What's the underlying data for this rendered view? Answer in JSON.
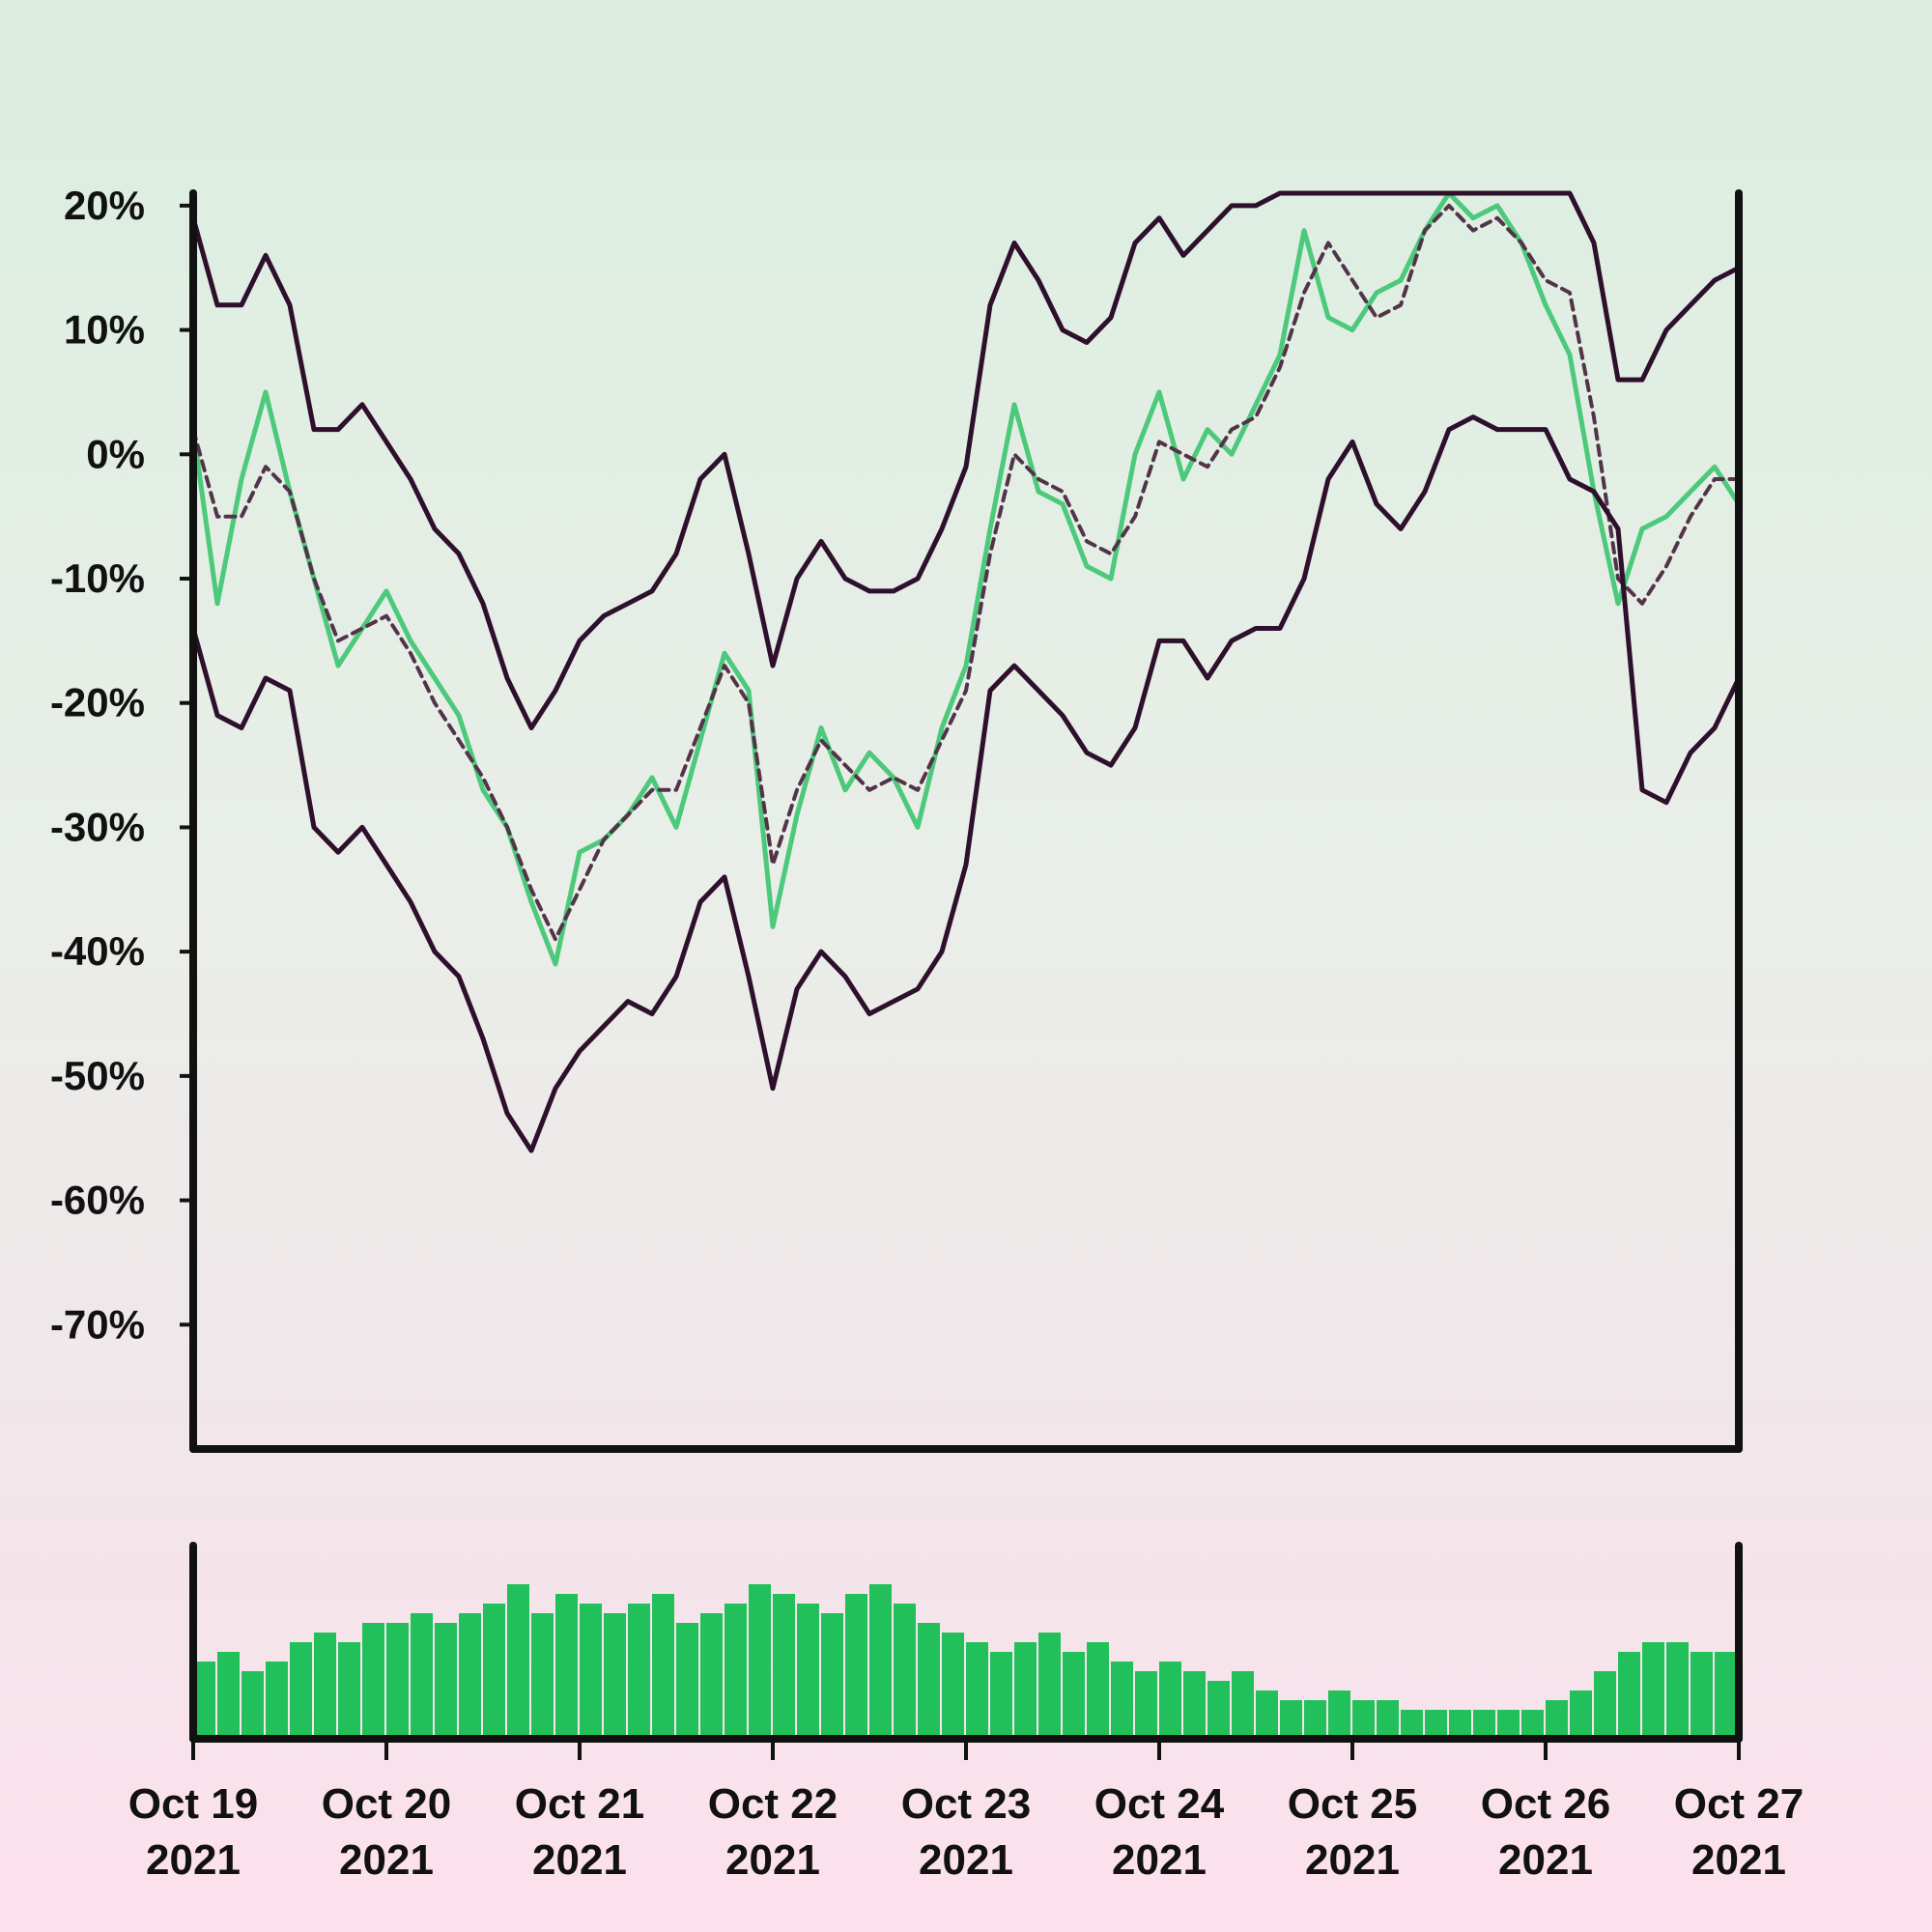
{
  "chart_data": {
    "type": "line",
    "title": "",
    "xlabel": "",
    "ylabel": "",
    "y_unit": "%",
    "ylim": [
      -80,
      21
    ],
    "y_ticks": [
      20,
      10,
      0,
      -10,
      -20,
      -30,
      -40,
      -50,
      -60,
      -70
    ],
    "y_tick_labels": [
      "20%",
      "10%",
      "0%",
      "-10%",
      "-20%",
      "-30%",
      "-40%",
      "-50%",
      "-60%",
      "-70%"
    ],
    "xlim": [
      "2021-10-19",
      "2021-10-27"
    ],
    "x_ticks": [
      "2021-10-19",
      "2021-10-20",
      "2021-10-21",
      "2021-10-22",
      "2021-10-23",
      "2021-10-24",
      "2021-10-25",
      "2021-10-26",
      "2021-10-27"
    ],
    "x_tick_labels": [
      [
        "Oct 19",
        "2021"
      ],
      [
        "Oct 20",
        "2021"
      ],
      [
        "Oct 21",
        "2021"
      ],
      [
        "Oct 22",
        "2021"
      ],
      [
        "Oct 23",
        "2021"
      ],
      [
        "Oct 24",
        "2021"
      ],
      [
        "Oct 25",
        "2021"
      ],
      [
        "Oct 26",
        "2021"
      ],
      [
        "Oct 27",
        "2021"
      ]
    ],
    "grid": false,
    "legend": "none",
    "colors": {
      "price": "#4cc97a",
      "band": "#2e0f2c",
      "mid": "#533349",
      "volume": "#22c05a",
      "axis": "#111111"
    },
    "series": [
      {
        "style": "green line",
        "x": [
          "2021-10-19T00:00",
          "2021-10-19T03:00",
          "2021-10-19T06:00",
          "2021-10-19T09:00",
          "2021-10-19T12:00",
          "2021-10-19T15:00",
          "2021-10-19T18:00",
          "2021-10-19T21:00",
          "2021-10-20T00:00",
          "2021-10-20T03:00",
          "2021-10-20T06:00",
          "2021-10-20T09:00",
          "2021-10-20T12:00",
          "2021-10-20T15:00",
          "2021-10-20T18:00",
          "2021-10-20T21:00",
          "2021-10-21T00:00",
          "2021-10-21T03:00",
          "2021-10-21T06:00",
          "2021-10-21T09:00",
          "2021-10-21T12:00",
          "2021-10-21T15:00",
          "2021-10-21T18:00",
          "2021-10-21T21:00",
          "2021-10-22T00:00",
          "2021-10-22T03:00",
          "2021-10-22T06:00",
          "2021-10-22T09:00",
          "2021-10-22T12:00",
          "2021-10-22T15:00",
          "2021-10-22T18:00",
          "2021-10-22T21:00",
          "2021-10-23T00:00",
          "2021-10-23T03:00",
          "2021-10-23T06:00",
          "2021-10-23T09:00",
          "2021-10-23T12:00",
          "2021-10-23T15:00",
          "2021-10-23T18:00",
          "2021-10-23T21:00",
          "2021-10-24T00:00",
          "2021-10-24T03:00",
          "2021-10-24T06:00",
          "2021-10-24T09:00",
          "2021-10-24T12:00",
          "2021-10-24T15:00",
          "2021-10-24T18:00",
          "2021-10-24T21:00",
          "2021-10-25T00:00",
          "2021-10-25T03:00",
          "2021-10-25T06:00",
          "2021-10-25T09:00",
          "2021-10-25T12:00",
          "2021-10-25T15:00",
          "2021-10-25T18:00",
          "2021-10-25T21:00",
          "2021-10-26T00:00",
          "2021-10-26T03:00",
          "2021-10-26T06:00",
          "2021-10-26T09:00",
          "2021-10-26T12:00",
          "2021-10-26T15:00",
          "2021-10-26T18:00",
          "2021-10-26T21:00",
          "2021-10-27T00:00"
        ],
        "values": [
          2,
          -12,
          -2,
          5,
          -3,
          -10,
          -17,
          -14,
          -11,
          -15,
          -18,
          -21,
          -27,
          -30,
          -36,
          -41,
          -32,
          -31,
          -29,
          -26,
          -30,
          -23,
          -16,
          -19,
          -38,
          -29,
          -22,
          -27,
          -24,
          -26,
          -30,
          -22,
          -17,
          -6,
          4,
          -3,
          -4,
          -9,
          -10,
          0,
          5,
          -2,
          2,
          0,
          4,
          8,
          18,
          11,
          10,
          13,
          14,
          18,
          21,
          19,
          20,
          17,
          12,
          8,
          -3,
          -12,
          -6,
          -5,
          -3,
          -1,
          -4
        ]
      },
      {
        "style": "dark line",
        "x": [
          "2021-10-19T00:00",
          "2021-10-19T03:00",
          "2021-10-19T06:00",
          "2021-10-19T09:00",
          "2021-10-19T12:00",
          "2021-10-19T15:00",
          "2021-10-19T18:00",
          "2021-10-19T21:00",
          "2021-10-20T00:00",
          "2021-10-20T03:00",
          "2021-10-20T06:00",
          "2021-10-20T09:00",
          "2021-10-20T12:00",
          "2021-10-20T15:00",
          "2021-10-20T18:00",
          "2021-10-20T21:00",
          "2021-10-21T00:00",
          "2021-10-21T03:00",
          "2021-10-21T06:00",
          "2021-10-21T09:00",
          "2021-10-21T12:00",
          "2021-10-21T15:00",
          "2021-10-21T18:00",
          "2021-10-21T21:00",
          "2021-10-22T00:00",
          "2021-10-22T03:00",
          "2021-10-22T06:00",
          "2021-10-22T09:00",
          "2021-10-22T12:00",
          "2021-10-22T15:00",
          "2021-10-22T18:00",
          "2021-10-22T21:00",
          "2021-10-23T00:00",
          "2021-10-23T03:00",
          "2021-10-23T06:00",
          "2021-10-23T09:00",
          "2021-10-23T12:00",
          "2021-10-23T15:00",
          "2021-10-23T18:00",
          "2021-10-23T21:00",
          "2021-10-24T00:00",
          "2021-10-24T03:00",
          "2021-10-24T06:00",
          "2021-10-24T09:00",
          "2021-10-24T12:00",
          "2021-10-24T15:00",
          "2021-10-24T18:00",
          "2021-10-24T21:00",
          "2021-10-25T00:00",
          "2021-10-25T03:00",
          "2021-10-25T06:00",
          "2021-10-25T09:00",
          "2021-10-25T12:00",
          "2021-10-25T15:00",
          "2021-10-25T18:00",
          "2021-10-25T21:00",
          "2021-10-26T00:00",
          "2021-10-26T03:00",
          "2021-10-26T06:00",
          "2021-10-26T09:00",
          "2021-10-26T12:00",
          "2021-10-26T15:00",
          "2021-10-26T18:00",
          "2021-10-26T21:00",
          "2021-10-27T00:00"
        ],
        "values": [
          19,
          12,
          12,
          16,
          12,
          2,
          2,
          4,
          1,
          -2,
          -6,
          -8,
          -12,
          -18,
          -22,
          -19,
          -15,
          -13,
          -12,
          -11,
          -8,
          -2,
          0,
          -8,
          -17,
          -10,
          -7,
          -10,
          -11,
          -11,
          -10,
          -6,
          -1,
          12,
          17,
          14,
          10,
          9,
          11,
          17,
          19,
          16,
          18,
          20,
          20,
          21,
          21,
          21,
          21,
          21,
          21,
          21,
          21,
          21,
          21,
          21,
          21,
          21,
          17,
          6,
          6,
          10,
          12,
          14,
          15
        ]
      },
      {
        "style": "dark dashed line",
        "x": [
          "2021-10-19T00:00",
          "2021-10-19T03:00",
          "2021-10-19T06:00",
          "2021-10-19T09:00",
          "2021-10-19T12:00",
          "2021-10-19T15:00",
          "2021-10-19T18:00",
          "2021-10-19T21:00",
          "2021-10-20T00:00",
          "2021-10-20T03:00",
          "2021-10-20T06:00",
          "2021-10-20T09:00",
          "2021-10-20T12:00",
          "2021-10-20T15:00",
          "2021-10-20T18:00",
          "2021-10-20T21:00",
          "2021-10-21T00:00",
          "2021-10-21T03:00",
          "2021-10-21T06:00",
          "2021-10-21T09:00",
          "2021-10-21T12:00",
          "2021-10-21T15:00",
          "2021-10-21T18:00",
          "2021-10-21T21:00",
          "2021-10-22T00:00",
          "2021-10-22T03:00",
          "2021-10-22T06:00",
          "2021-10-22T09:00",
          "2021-10-22T12:00",
          "2021-10-22T15:00",
          "2021-10-22T18:00",
          "2021-10-22T21:00",
          "2021-10-23T00:00",
          "2021-10-23T03:00",
          "2021-10-23T06:00",
          "2021-10-23T09:00",
          "2021-10-23T12:00",
          "2021-10-23T15:00",
          "2021-10-23T18:00",
          "2021-10-23T21:00",
          "2021-10-24T00:00",
          "2021-10-24T03:00",
          "2021-10-24T06:00",
          "2021-10-24T09:00",
          "2021-10-24T12:00",
          "2021-10-24T15:00",
          "2021-10-24T18:00",
          "2021-10-24T21:00",
          "2021-10-25T00:00",
          "2021-10-25T03:00",
          "2021-10-25T06:00",
          "2021-10-25T09:00",
          "2021-10-25T12:00",
          "2021-10-25T15:00",
          "2021-10-25T18:00",
          "2021-10-25T21:00",
          "2021-10-26T00:00",
          "2021-10-26T03:00",
          "2021-10-26T06:00",
          "2021-10-26T09:00",
          "2021-10-26T12:00",
          "2021-10-26T15:00",
          "2021-10-26T18:00",
          "2021-10-26T21:00",
          "2021-10-27T00:00"
        ],
        "values": [
          2,
          -5,
          -5,
          -1,
          -3,
          -10,
          -15,
          -14,
          -13,
          -16,
          -20,
          -23,
          -26,
          -30,
          -35,
          -39,
          -35,
          -31,
          -29,
          -27,
          -27,
          -22,
          -17,
          -20,
          -33,
          -27,
          -23,
          -25,
          -27,
          -26,
          -27,
          -23,
          -19,
          -8,
          0,
          -2,
          -3,
          -7,
          -8,
          -5,
          1,
          0,
          -1,
          2,
          3,
          7,
          13,
          17,
          14,
          11,
          12,
          18,
          20,
          18,
          19,
          17,
          14,
          13,
          3,
          -10,
          -12,
          -9,
          -5,
          -2,
          -2
        ]
      },
      {
        "style": "dark line",
        "x": [
          "2021-10-19T00:00",
          "2021-10-19T03:00",
          "2021-10-19T06:00",
          "2021-10-19T09:00",
          "2021-10-19T12:00",
          "2021-10-19T15:00",
          "2021-10-19T18:00",
          "2021-10-19T21:00",
          "2021-10-20T00:00",
          "2021-10-20T03:00",
          "2021-10-20T06:00",
          "2021-10-20T09:00",
          "2021-10-20T12:00",
          "2021-10-20T15:00",
          "2021-10-20T18:00",
          "2021-10-20T21:00",
          "2021-10-21T00:00",
          "2021-10-21T03:00",
          "2021-10-21T06:00",
          "2021-10-21T09:00",
          "2021-10-21T12:00",
          "2021-10-21T15:00",
          "2021-10-21T18:00",
          "2021-10-21T21:00",
          "2021-10-22T00:00",
          "2021-10-22T03:00",
          "2021-10-22T06:00",
          "2021-10-22T09:00",
          "2021-10-22T12:00",
          "2021-10-22T15:00",
          "2021-10-22T18:00",
          "2021-10-22T21:00",
          "2021-10-23T00:00",
          "2021-10-23T03:00",
          "2021-10-23T06:00",
          "2021-10-23T09:00",
          "2021-10-23T12:00",
          "2021-10-23T15:00",
          "2021-10-23T18:00",
          "2021-10-23T21:00",
          "2021-10-24T00:00",
          "2021-10-24T03:00",
          "2021-10-24T06:00",
          "2021-10-24T09:00",
          "2021-10-24T12:00",
          "2021-10-24T15:00",
          "2021-10-24T18:00",
          "2021-10-24T21:00",
          "2021-10-25T00:00",
          "2021-10-25T03:00",
          "2021-10-25T06:00",
          "2021-10-25T09:00",
          "2021-10-25T12:00",
          "2021-10-25T15:00",
          "2021-10-25T18:00",
          "2021-10-25T21:00",
          "2021-10-26T00:00",
          "2021-10-26T03:00",
          "2021-10-26T06:00",
          "2021-10-26T09:00",
          "2021-10-26T12:00",
          "2021-10-26T15:00",
          "2021-10-26T18:00",
          "2021-10-26T21:00",
          "2021-10-27T00:00"
        ],
        "values": [
          -14,
          -21,
          -22,
          -18,
          -19,
          -30,
          -32,
          -30,
          -33,
          -36,
          -40,
          -42,
          -47,
          -53,
          -56,
          -51,
          -48,
          -46,
          -44,
          -45,
          -42,
          -36,
          -34,
          -42,
          -51,
          -43,
          -40,
          -42,
          -45,
          -44,
          -43,
          -40,
          -33,
          -19,
          -17,
          -19,
          -21,
          -24,
          -25,
          -22,
          -15,
          -15,
          -18,
          -15,
          -14,
          -14,
          -10,
          -2,
          1,
          -4,
          -6,
          -3,
          2,
          3,
          2,
          2,
          2,
          -2,
          -3,
          -6,
          -27,
          -28,
          -24,
          -22,
          -18
        ]
      }
    ],
    "volume": {
      "unit": "relative",
      "ylim": [
        0,
        1
      ],
      "x": [
        "2021-10-19T00:00",
        "2021-10-19T03:00",
        "2021-10-19T06:00",
        "2021-10-19T09:00",
        "2021-10-19T12:00",
        "2021-10-19T15:00",
        "2021-10-19T18:00",
        "2021-10-19T21:00",
        "2021-10-20T00:00",
        "2021-10-20T03:00",
        "2021-10-20T06:00",
        "2021-10-20T09:00",
        "2021-10-20T12:00",
        "2021-10-20T15:00",
        "2021-10-20T18:00",
        "2021-10-20T21:00",
        "2021-10-21T00:00",
        "2021-10-21T03:00",
        "2021-10-21T06:00",
        "2021-10-21T09:00",
        "2021-10-21T12:00",
        "2021-10-21T15:00",
        "2021-10-21T18:00",
        "2021-10-21T21:00",
        "2021-10-22T00:00",
        "2021-10-22T03:00",
        "2021-10-22T06:00",
        "2021-10-22T09:00",
        "2021-10-22T12:00",
        "2021-10-22T15:00",
        "2021-10-22T18:00",
        "2021-10-22T21:00",
        "2021-10-23T00:00",
        "2021-10-23T03:00",
        "2021-10-23T06:00",
        "2021-10-23T09:00",
        "2021-10-23T12:00",
        "2021-10-23T15:00",
        "2021-10-23T18:00",
        "2021-10-23T21:00",
        "2021-10-24T00:00",
        "2021-10-24T03:00",
        "2021-10-24T06:00",
        "2021-10-24T09:00",
        "2021-10-24T12:00",
        "2021-10-24T15:00",
        "2021-10-24T18:00",
        "2021-10-24T21:00",
        "2021-10-25T00:00",
        "2021-10-25T03:00",
        "2021-10-25T06:00",
        "2021-10-25T09:00",
        "2021-10-25T12:00",
        "2021-10-25T15:00",
        "2021-10-25T18:00",
        "2021-10-25T21:00",
        "2021-10-26T00:00",
        "2021-10-26T03:00",
        "2021-10-26T06:00",
        "2021-10-26T09:00",
        "2021-10-26T12:00",
        "2021-10-26T15:00",
        "2021-10-26T18:00",
        "2021-10-26T21:00"
      ],
      "values": [
        0.4,
        0.45,
        0.35,
        0.4,
        0.5,
        0.55,
        0.5,
        0.6,
        0.6,
        0.65,
        0.6,
        0.65,
        0.7,
        0.8,
        0.65,
        0.75,
        0.7,
        0.65,
        0.7,
        0.75,
        0.6,
        0.65,
        0.7,
        0.8,
        0.75,
        0.7,
        0.65,
        0.75,
        0.8,
        0.7,
        0.6,
        0.55,
        0.5,
        0.45,
        0.5,
        0.55,
        0.45,
        0.5,
        0.4,
        0.35,
        0.4,
        0.35,
        0.3,
        0.35,
        0.25,
        0.2,
        0.2,
        0.25,
        0.2,
        0.2,
        0.15,
        0.15,
        0.15,
        0.15,
        0.15,
        0.15,
        0.2,
        0.25,
        0.35,
        0.45,
        0.5,
        0.5,
        0.45,
        0.45
      ]
    }
  }
}
